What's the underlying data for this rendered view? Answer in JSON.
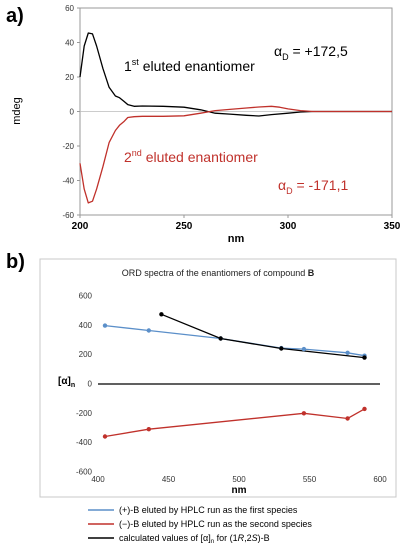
{
  "panel_a": {
    "label": "a)",
    "chart_data": {
      "type": "line",
      "xlabel": "nm",
      "ylabel": "mdeg",
      "xlim": [
        200,
        350
      ],
      "ylim": [
        -60,
        60
      ],
      "x_ticks": [
        200,
        250,
        300,
        350
      ],
      "y_ticks": [
        60,
        40,
        20,
        0,
        -20,
        -40,
        -60
      ],
      "grid": false,
      "series": [
        {
          "color": "#000000",
          "points": [
            [
              200,
              20
            ],
            [
              202,
              38
            ],
            [
              204,
              45.5
            ],
            [
              206,
              45
            ],
            [
              208,
              38
            ],
            [
              211,
              25
            ],
            [
              214,
              14
            ],
            [
              217,
              9
            ],
            [
              219,
              8
            ],
            [
              221,
              6
            ],
            [
              223,
              4
            ],
            [
              226,
              3
            ],
            [
              230,
              3.2
            ],
            [
              240,
              3
            ],
            [
              250,
              2.5
            ],
            [
              258,
              1
            ],
            [
              265,
              -1
            ],
            [
              272,
              -1.5
            ],
            [
              280,
              -2.2
            ],
            [
              286,
              -2.6
            ],
            [
              292,
              -1.8
            ],
            [
              300,
              -1
            ],
            [
              306,
              -0.3
            ],
            [
              312,
              0
            ],
            [
              330,
              0
            ],
            [
              350,
              0
            ]
          ]
        },
        {
          "color": "#c0312b",
          "points": [
            [
              200,
              -30
            ],
            [
              202,
              -45
            ],
            [
              204,
              -53
            ],
            [
              206,
              -52
            ],
            [
              208,
              -45
            ],
            [
              211,
              -32
            ],
            [
              214,
              -18
            ],
            [
              217,
              -11
            ],
            [
              219,
              -8
            ],
            [
              221,
              -6
            ],
            [
              223,
              -3.5
            ],
            [
              226,
              -3
            ],
            [
              230,
              -2.8
            ],
            [
              240,
              -2.8
            ],
            [
              250,
              -2.5
            ],
            [
              258,
              -1
            ],
            [
              265,
              0.5
            ],
            [
              272,
              1.2
            ],
            [
              280,
              2
            ],
            [
              286,
              2.6
            ],
            [
              292,
              3
            ],
            [
              296,
              2.5
            ],
            [
              300,
              1.5
            ],
            [
              306,
              0.5
            ],
            [
              312,
              0
            ],
            [
              330,
              0
            ],
            [
              350,
              0
            ]
          ]
        }
      ],
      "annotations": {
        "first_prefix": "1",
        "first_sup": "st",
        "first_suffix": " eluted enantiomer",
        "second_prefix": "2",
        "second_sup": "nd",
        "second_suffix": " eluted enantiomer",
        "alpha_symbol": "α",
        "alpha_sub": "D",
        "alpha_first_value": " = +172,5",
        "alpha_second_value": " = -171,1"
      }
    }
  },
  "panel_b": {
    "label": "b)",
    "chart_data": {
      "type": "line",
      "title_prefix": "ORD spectra of the enantiomers of compound ",
      "title_bold": "B",
      "xlabel": "nm",
      "ylabel_open": "[α]",
      "ylabel_sub": "n",
      "xlim": [
        400,
        600
      ],
      "ylim": [
        -600,
        600
      ],
      "x_ticks": [
        400,
        450,
        500,
        550,
        600
      ],
      "y_ticks": [
        600,
        400,
        200,
        0,
        -200,
        -400,
        -600
      ],
      "grid": false,
      "series": [
        {
          "color": "#5b8fc9",
          "points": [
            [
              405,
              398
            ],
            [
              436,
              365
            ],
            [
              487,
              310
            ],
            [
              530,
              245
            ],
            [
              546,
              238
            ],
            [
              577,
              213
            ],
            [
              589,
              193
            ]
          ]
        },
        {
          "color": "#c0312b",
          "points": [
            [
              405,
              -358
            ],
            [
              436,
              -308
            ],
            [
              546,
              -200
            ],
            [
              577,
              -235
            ],
            [
              589,
              -170
            ]
          ]
        },
        {
          "color": "#000000",
          "points": [
            [
              445,
              475
            ],
            [
              487,
              310
            ],
            [
              530,
              242
            ],
            [
              589,
              180
            ]
          ]
        }
      ],
      "legend": [
        {
          "color": "#5b8fc9",
          "text": "(+)-B eluted by HPLC run as the first species"
        },
        {
          "color": "#c0312b",
          "text": "(−)-B eluted by HPLC run as the second species"
        },
        {
          "color": "#000000",
          "text_prefix": "calculated values of [α]",
          "text_sub": "n",
          "text_mid": " for (1",
          "text_r": "R",
          "text_comma": ",2",
          "text_s": "S",
          "text_suffix": ")-B"
        }
      ]
    }
  }
}
